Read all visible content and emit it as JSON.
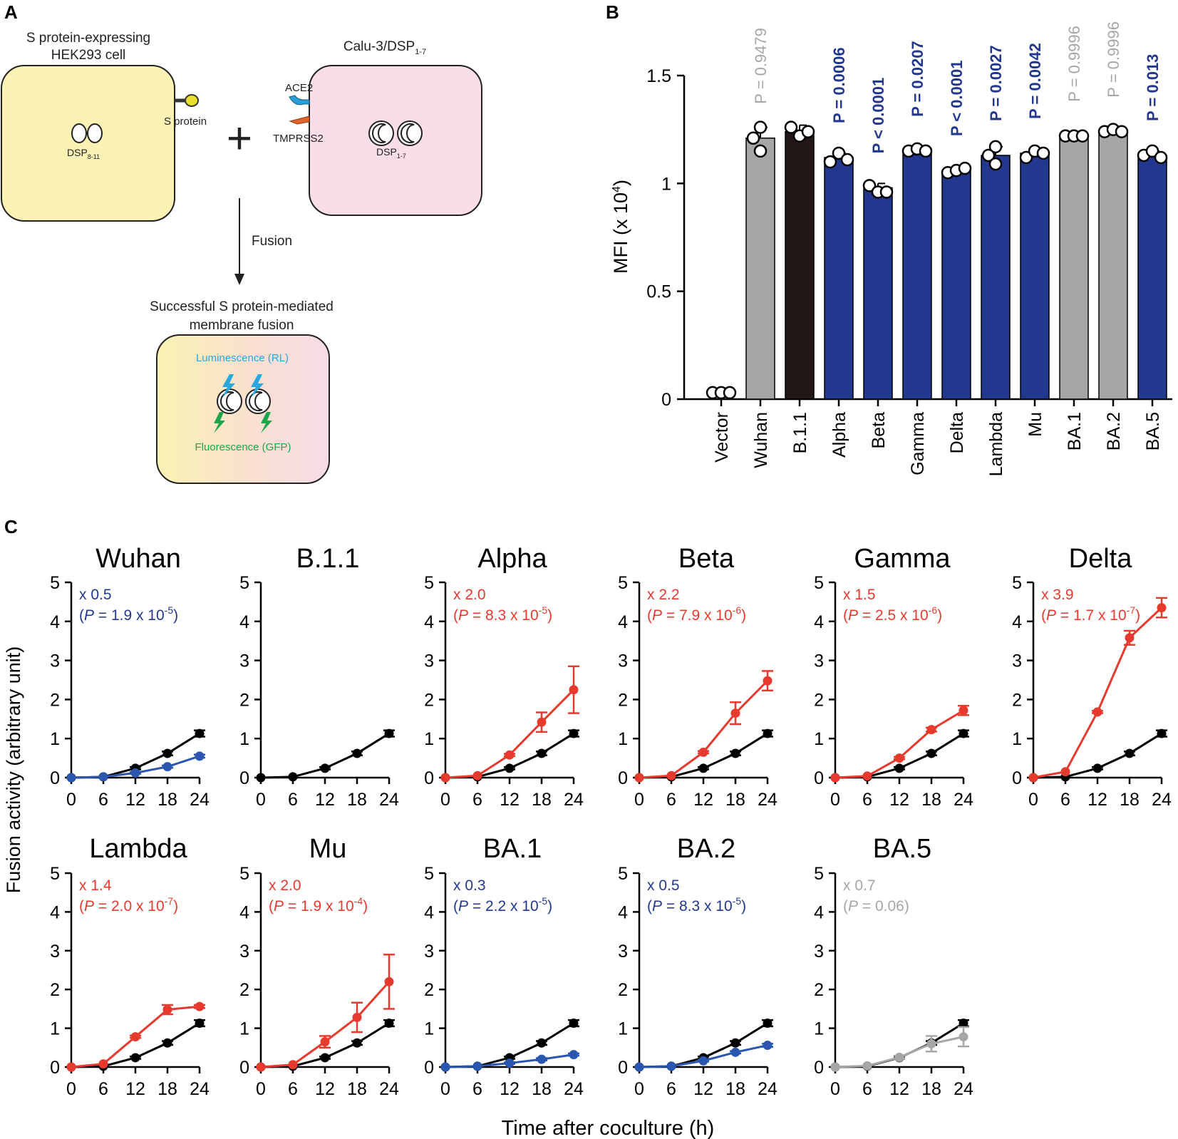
{
  "panel_labels": {
    "a": "A",
    "b": "B",
    "c": "C"
  },
  "diagram": {
    "left_cell_title_1": "S protein-expressing",
    "left_cell_title_2": "HEK293 cell",
    "left_organelle_main": "DSP",
    "left_organelle_sub": "8-11",
    "spike_label": "S protein",
    "right_cell_title_main": "Calu-3/DSP",
    "right_cell_title_sub": "1-7",
    "ace2_label": "ACE2",
    "tmprss2_label": "TMPRSS2",
    "right_organelle_main": "DSP",
    "right_organelle_sub": "1-7",
    "plus_sign": "+",
    "arrow_label": "Fusion",
    "result_title_1": "Successful S protein-mediated",
    "result_title_2": "membrane fusion",
    "luminescence_label": "Luminescence (RL)",
    "fluorescence_label": "Fluorescence (GFP)",
    "colors": {
      "left_cell": "#fbf2b4",
      "right_cell": "#f9dde9",
      "spike": "#e8e02a",
      "ace2": "#2a9fd6",
      "tmprss2": "#e0642a",
      "lum": "#29a8e0",
      "fluo": "#1ea64a"
    }
  },
  "chart_data": [
    {
      "type": "bar",
      "title": "",
      "ylabel_main": "MFI (x 10",
      "ylabel_sup": "4",
      "ylabel_end": ")",
      "ylim": [
        0,
        1.5
      ],
      "yticks": [
        0,
        0.5,
        1,
        1.5
      ],
      "ytick_labels": [
        "0",
        "0.5",
        "1",
        "1.5"
      ],
      "categories": [
        "Vector",
        "Wuhan",
        "B.1.1",
        "Alpha",
        "Beta",
        "Gamma",
        "Delta",
        "Lambda",
        "Mu",
        "BA.1",
        "BA.2",
        "BA.5"
      ],
      "values": [
        0.03,
        1.21,
        1.24,
        1.12,
        0.98,
        1.15,
        1.06,
        1.13,
        1.14,
        1.22,
        1.24,
        1.13
      ],
      "errors": [
        0,
        0.05,
        0.03,
        0.02,
        0.02,
        0.01,
        0.01,
        0.04,
        0.02,
        0.01,
        0.01,
        0.02
      ],
      "points": [
        [
          0.03,
          0.03,
          0.03
        ],
        [
          1.26,
          1.21,
          1.15
        ],
        [
          1.26,
          1.22,
          1.24
        ],
        [
          1.1,
          1.14,
          1.11
        ],
        [
          0.99,
          0.96,
          0.96
        ],
        [
          1.15,
          1.16,
          1.15
        ],
        [
          1.05,
          1.06,
          1.07
        ],
        [
          1.17,
          1.13,
          1.09
        ],
        [
          1.12,
          1.15,
          1.14
        ],
        [
          1.22,
          1.22,
          1.22
        ],
        [
          1.24,
          1.25,
          1.24
        ],
        [
          1.13,
          1.15,
          1.12
        ]
      ],
      "bar_colors": [
        "#ffffff",
        "#a6a6a6",
        "#231815",
        "#22378e",
        "#22378e",
        "#22378e",
        "#22378e",
        "#22378e",
        "#22378e",
        "#a6a6a6",
        "#a6a6a6",
        "#22378e"
      ],
      "pvalues": [
        "",
        "P = 0.9479",
        "",
        "P = 0.0006",
        "P < 0.0001",
        "P = 0.0207",
        "P < 0.0001",
        "P = 0.0027",
        "P = 0.0042",
        "P = 0.9996",
        "P = 0.9996",
        "P = 0.013"
      ],
      "pvalue_colors": [
        "",
        "#a6a6a6",
        "",
        "#22378e",
        "#22378e",
        "#22378e",
        "#22378e",
        "#22378e",
        "#22378e",
        "#a6a6a6",
        "#a6a6a6",
        "#22378e"
      ]
    },
    {
      "type": "line",
      "ylabel": "Fusion activity (arbitrary unit)",
      "xlabel": "Time after coculture (h)",
      "x": [
        0,
        6,
        12,
        18,
        24
      ],
      "xticks": [
        "0",
        "6",
        "12",
        "18",
        "24"
      ],
      "ylim": [
        0,
        5
      ],
      "yticks": [
        "0",
        "1",
        "2",
        "3",
        "4",
        "5"
      ],
      "reference": {
        "name": "B.1.1",
        "values": [
          0,
          0.02,
          0.24,
          0.62,
          1.13
        ],
        "errors": [
          0,
          0,
          0.03,
          0.05,
          0.08
        ],
        "color": "#000000"
      },
      "panels": [
        {
          "title": "Wuhan",
          "factor": "x 0.5",
          "p_base": "1.9 x 10",
          "p_exp": "-5",
          "color": "#2a56b0",
          "text_color": "#22378e",
          "values": [
            0,
            0.02,
            0.12,
            0.28,
            0.55
          ],
          "errors": [
            0,
            0,
            0.02,
            0.03,
            0.04
          ]
        },
        {
          "title": "B.1.1",
          "factor": "",
          "p_base": "",
          "p_exp": "",
          "color": "",
          "text_color": "",
          "values": [],
          "errors": []
        },
        {
          "title": "Alpha",
          "factor": "x 2.0",
          "p_base": "8.3 x 10",
          "p_exp": "-5",
          "color": "#e63a2e",
          "text_color": "#e63a2e",
          "values": [
            0,
            0.05,
            0.58,
            1.42,
            2.25
          ],
          "errors": [
            0,
            0,
            0.03,
            0.25,
            0.6
          ]
        },
        {
          "title": "Beta",
          "factor": "x 2.2",
          "p_base": "7.9 x 10",
          "p_exp": "-6",
          "color": "#e63a2e",
          "text_color": "#e63a2e",
          "values": [
            0,
            0.05,
            0.65,
            1.65,
            2.48
          ],
          "errors": [
            0,
            0,
            0.03,
            0.28,
            0.25
          ]
        },
        {
          "title": "Gamma",
          "factor": "x 1.5",
          "p_base": "2.5 x 10",
          "p_exp": "-6",
          "color": "#e63a2e",
          "text_color": "#e63a2e",
          "values": [
            0,
            0.04,
            0.5,
            1.23,
            1.72
          ],
          "errors": [
            0,
            0,
            0.03,
            0.05,
            0.12
          ]
        },
        {
          "title": "Delta",
          "factor": "x 3.9",
          "p_base": "1.7 x 10",
          "p_exp": "-7",
          "color": "#e63a2e",
          "text_color": "#e63a2e",
          "values": [
            0,
            0.15,
            1.68,
            3.58,
            4.35
          ],
          "errors": [
            0,
            0,
            0.03,
            0.18,
            0.25
          ]
        },
        {
          "title": "Lambda",
          "factor": "x 1.4",
          "p_base": "2.0 x 10",
          "p_exp": "-7",
          "color": "#e63a2e",
          "text_color": "#e63a2e",
          "values": [
            0,
            0.08,
            0.78,
            1.48,
            1.56
          ],
          "errors": [
            0,
            0,
            0.03,
            0.12,
            0.04
          ]
        },
        {
          "title": "Mu",
          "factor": "x 2.0",
          "p_base": "1.9 x 10",
          "p_exp": "-4",
          "color": "#e63a2e",
          "text_color": "#e63a2e",
          "values": [
            0,
            0.06,
            0.65,
            1.28,
            2.2
          ],
          "errors": [
            0,
            0,
            0.15,
            0.38,
            0.7
          ]
        },
        {
          "title": "BA.1",
          "factor": "x 0.3",
          "p_base": "2.2 x 10",
          "p_exp": "-5",
          "color": "#2a56b0",
          "text_color": "#22378e",
          "values": [
            0,
            0.02,
            0.1,
            0.2,
            0.32
          ],
          "errors": [
            0,
            0,
            0.02,
            0.03,
            0.03
          ]
        },
        {
          "title": "BA.2",
          "factor": "x 0.5",
          "p_base": "8.3 x 10",
          "p_exp": "-5",
          "color": "#2a56b0",
          "text_color": "#22378e",
          "values": [
            0,
            0.02,
            0.16,
            0.38,
            0.56
          ],
          "errors": [
            0,
            0,
            0.02,
            0.03,
            0.04
          ]
        },
        {
          "title": "BA.5",
          "factor": "x 0.7",
          "p_base": "0.06",
          "p_exp": "",
          "color": "#a6a6a6",
          "text_color": "#a6a6a6",
          "values": [
            0,
            0.03,
            0.25,
            0.6,
            0.78
          ],
          "errors": [
            0,
            0,
            0.04,
            0.2,
            0.25
          ]
        }
      ]
    }
  ]
}
